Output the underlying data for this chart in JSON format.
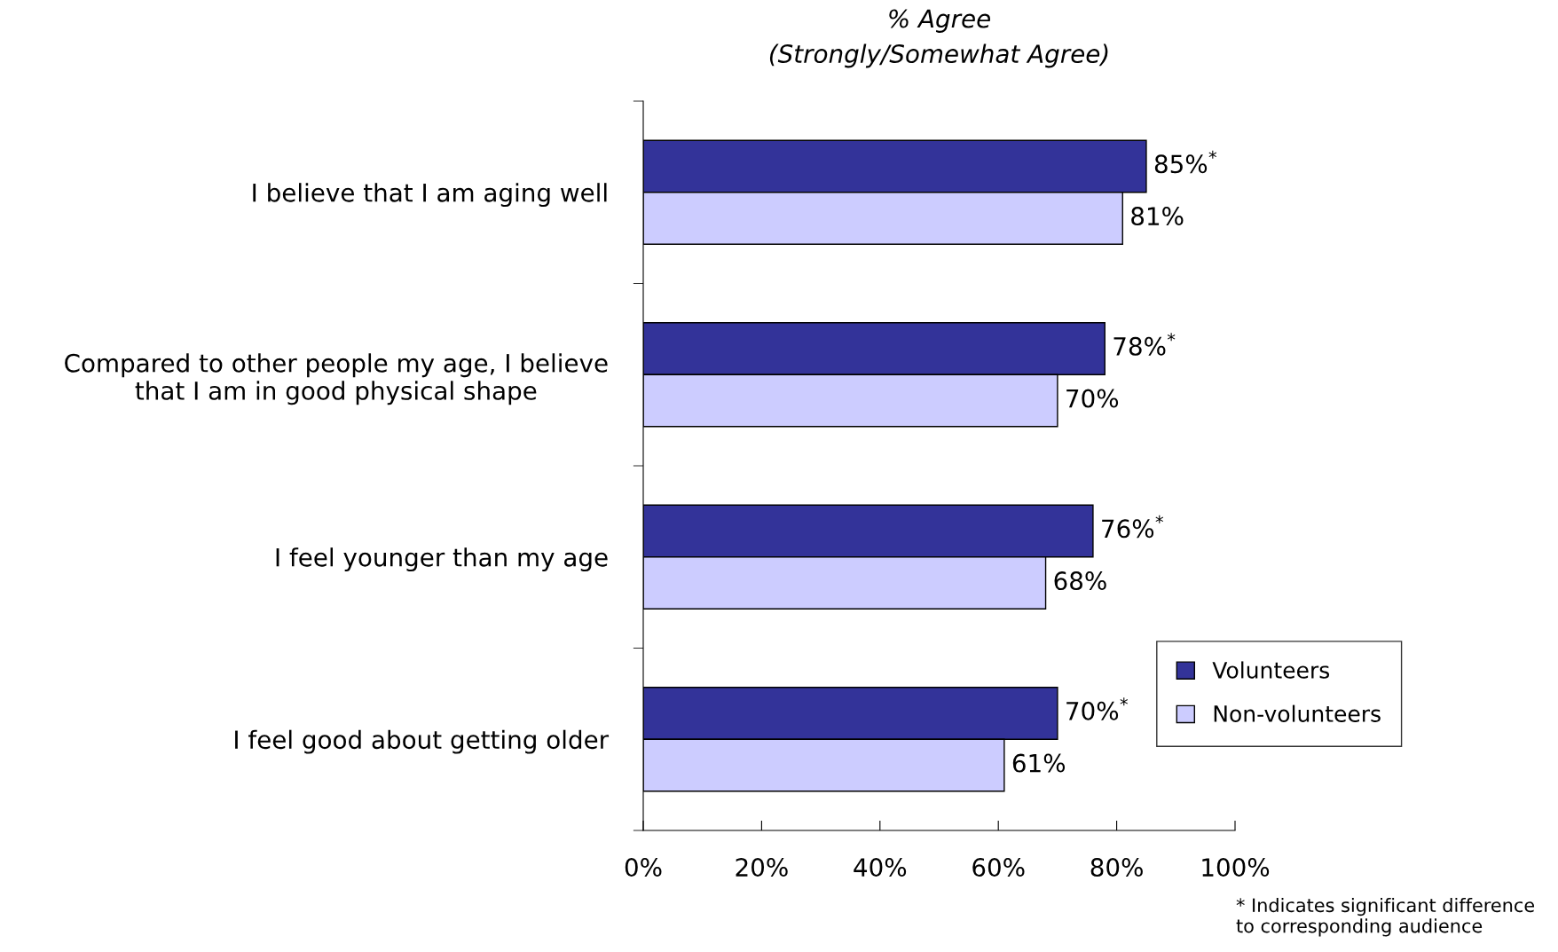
{
  "chart_data": {
    "type": "bar",
    "orientation": "horizontal",
    "title": "% Agree\n(Strongly/Somewhat Agree)",
    "categories": [
      "I believe that I am aging well",
      "Compared to other people my age, I believe\nthat I am in good physical shape",
      "I feel younger than my age",
      "I feel good about getting older"
    ],
    "series": [
      {
        "name": "Volunteers",
        "color": "#333399",
        "values": [
          85,
          78,
          76,
          70
        ],
        "value_labels": [
          "85%$^{*}$",
          "78%$^{*}$",
          "76%$^{*}$",
          "70%$^{*}$"
        ]
      },
      {
        "name": "Non-volunteers",
        "color": "#ccccff",
        "values": [
          81,
          70,
          68,
          61
        ],
        "value_labels": [
          "81%",
          "70%",
          "68%",
          "61%"
        ]
      }
    ],
    "xlim": [
      0,
      100
    ],
    "xticks": [
      {
        "value": 0,
        "label": "0%"
      },
      {
        "value": 20,
        "label": "20%"
      },
      {
        "value": 40,
        "label": "40%"
      },
      {
        "value": 60,
        "label": "60%"
      },
      {
        "value": 80,
        "label": "80%"
      },
      {
        "value": 100,
        "label": "100%"
      }
    ],
    "grid": false,
    "legend": "bottom right",
    "annotations": [
      "* Indicates significant difference\nto corresponding audience"
    ]
  }
}
